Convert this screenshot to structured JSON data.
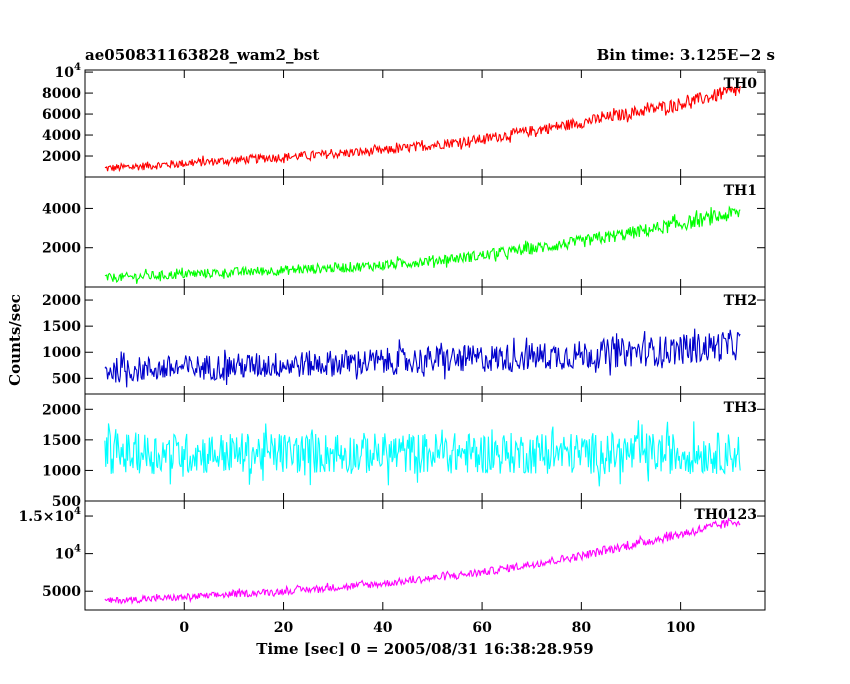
{
  "header": {
    "left": "ae050831163828_wam2_bst",
    "right": "Bin time: 3.125E−2 s"
  },
  "chart_data": {
    "type": "line",
    "xlabel": "Time [sec] 0 = 2005/08/31 16:38:28.959",
    "ylabel": "Counts/sec",
    "xlim": [
      -20,
      117
    ],
    "x_ticks": [
      0,
      20,
      40,
      60,
      80,
      100
    ],
    "x_tick_labels": [
      "0",
      "20",
      "40",
      "60",
      "80",
      "100"
    ],
    "x_data_range": [
      -16,
      112
    ],
    "panels": [
      {
        "name": "TH0",
        "color": "#ff0000",
        "ylim": [
          0,
          10200
        ],
        "y_ticks": [
          2000,
          4000,
          6000,
          8000,
          10000
        ],
        "y_tick_labels": [
          {
            "base": "2000"
          },
          {
            "base": "4000"
          },
          {
            "base": "6000"
          },
          {
            "base": "8000"
          },
          {
            "base": "10",
            "sup": "4"
          }
        ],
        "trend": {
          "x": [
            -16,
            0,
            20,
            40,
            60,
            80,
            100,
            112
          ],
          "y": [
            800,
            1300,
            1900,
            2500,
            3600,
            5200,
            7000,
            8300
          ]
        },
        "noise": 650
      },
      {
        "name": "TH1",
        "color": "#00ff00",
        "ylim": [
          0,
          5600
        ],
        "y_ticks": [
          2000,
          4000
        ],
        "y_tick_labels": [
          {
            "base": "2000"
          },
          {
            "base": "4000"
          }
        ],
        "trend": {
          "x": [
            -16,
            0,
            20,
            40,
            60,
            80,
            100,
            112
          ],
          "y": [
            450,
            650,
            850,
            1100,
            1600,
            2300,
            3200,
            3800
          ]
        },
        "noise": 380
      },
      {
        "name": "TH2",
        "color": "#0000cc",
        "ylim": [
          200,
          2250
        ],
        "y_ticks": [
          500,
          1000,
          1500,
          2000
        ],
        "y_tick_labels": [
          {
            "base": "500"
          },
          {
            "base": "1000"
          },
          {
            "base": "1500"
          },
          {
            "base": "2000"
          }
        ],
        "trend": {
          "x": [
            -16,
            0,
            20,
            40,
            60,
            80,
            100,
            112
          ],
          "y": [
            650,
            700,
            760,
            820,
            880,
            950,
            1050,
            1150
          ]
        },
        "noise": 300
      },
      {
        "name": "TH3",
        "color": "#00ffff",
        "ylim": [
          500,
          2250
        ],
        "y_ticks": [
          500,
          1000,
          1500,
          2000
        ],
        "y_tick_labels": [
          {
            "base": "500"
          },
          {
            "base": "1000"
          },
          {
            "base": "1500"
          },
          {
            "base": "2000"
          }
        ],
        "trend": {
          "x": [
            -16,
            112
          ],
          "y": [
            1280,
            1280
          ]
        },
        "noise": 340
      },
      {
        "name": "TH0123",
        "color": "#ff00ff",
        "ylim": [
          2500,
          17000
        ],
        "y_ticks": [
          5000,
          10000,
          15000
        ],
        "y_tick_labels": [
          {
            "base": "5000"
          },
          {
            "base": "10",
            "sup": "4"
          },
          {
            "base": "1.5×10",
            "sup": "4"
          }
        ],
        "trend": {
          "x": [
            -16,
            0,
            20,
            40,
            60,
            80,
            100,
            112
          ],
          "y": [
            3700,
            4200,
            5000,
            6000,
            7500,
            9700,
            12600,
            14400
          ]
        },
        "noise": 650
      }
    ]
  }
}
